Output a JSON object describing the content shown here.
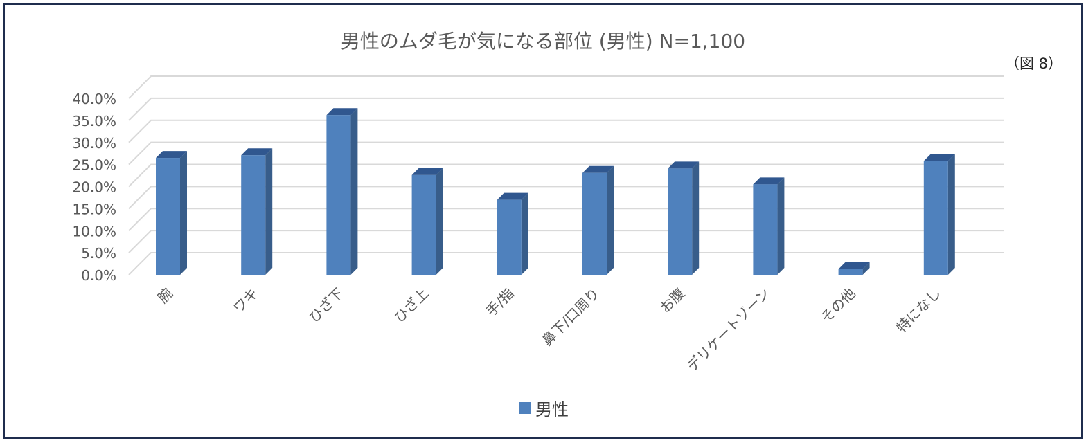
{
  "colors": {
    "bar_front": "#4f81bd",
    "bar_side": "#385d8a",
    "bar_top": "#30578f",
    "grid": "#d9d9d9",
    "tick_text": "#595959",
    "frame": "#1f2d4e"
  },
  "figure_note": "（図 8）",
  "chart_data": {
    "type": "bar",
    "title": "男性のムダ毛が気になる部位 (男性) N=1,100",
    "categories": [
      "腕",
      "ワキ",
      "ひざ下",
      "ひざ上",
      "手/指",
      "鼻下/口周り",
      "お腹",
      "デリケートゾーン",
      "その他",
      "特になし"
    ],
    "series": [
      {
        "name": "男性",
        "values": [
          26.5,
          27.1,
          36.2,
          22.6,
          17.0,
          23.1,
          24.1,
          20.5,
          1.3,
          25.8
        ]
      }
    ],
    "ylim": [
      0,
      40
    ],
    "y_ticks": [
      "0.0%",
      "5.0%",
      "10.0%",
      "15.0%",
      "20.0%",
      "25.0%",
      "30.0%",
      "35.0%",
      "40.0%"
    ],
    "y_tick_values": [
      0,
      5,
      10,
      15,
      20,
      25,
      30,
      35,
      40
    ],
    "xlabel": "",
    "ylabel": "",
    "grid": true,
    "legend_position": "bottom",
    "style": "3d-column"
  }
}
